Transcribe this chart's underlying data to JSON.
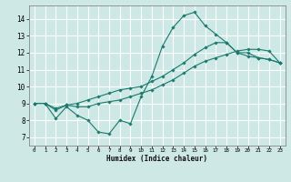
{
  "xlabel": "Humidex (Indice chaleur)",
  "xlim": [
    -0.5,
    23.5
  ],
  "ylim": [
    6.5,
    14.8
  ],
  "xticks": [
    0,
    1,
    2,
    3,
    4,
    5,
    6,
    7,
    8,
    9,
    10,
    11,
    12,
    13,
    14,
    15,
    16,
    17,
    18,
    19,
    20,
    21,
    22,
    23
  ],
  "yticks": [
    7,
    8,
    9,
    10,
    11,
    12,
    13,
    14
  ],
  "bg_color": "#cde8e5",
  "line_color": "#1a7a6e",
  "grid_color": "#b8d8d5",
  "lines": [
    {
      "x": [
        0,
        1,
        2,
        3,
        4,
        5,
        6,
        7,
        8,
        9,
        10,
        11,
        12,
        13,
        14,
        15,
        16,
        17,
        18,
        19,
        20,
        21,
        22,
        23
      ],
      "y": [
        9.0,
        9.0,
        8.1,
        8.8,
        8.3,
        8.0,
        7.3,
        7.2,
        8.0,
        7.8,
        9.4,
        10.6,
        12.4,
        13.5,
        14.2,
        14.4,
        13.6,
        13.1,
        12.6,
        12.0,
        12.0,
        11.7,
        11.6,
        11.4
      ]
    },
    {
      "x": [
        0,
        1,
        2,
        3,
        4,
        5,
        6,
        7,
        8,
        9,
        10,
        11,
        12,
        13,
        14,
        15,
        16,
        17,
        18,
        19,
        20,
        21,
        22,
        23
      ],
      "y": [
        9.0,
        9.0,
        8.7,
        8.9,
        8.8,
        8.8,
        9.0,
        9.1,
        9.2,
        9.4,
        9.6,
        9.8,
        10.1,
        10.4,
        10.8,
        11.2,
        11.5,
        11.7,
        11.9,
        12.1,
        12.2,
        12.2,
        12.1,
        11.4
      ]
    },
    {
      "x": [
        0,
        1,
        2,
        3,
        4,
        5,
        6,
        7,
        8,
        9,
        10,
        11,
        12,
        13,
        14,
        15,
        16,
        17,
        18,
        19,
        20,
        21,
        22,
        23
      ],
      "y": [
        9.0,
        9.0,
        8.6,
        8.9,
        9.0,
        9.2,
        9.4,
        9.6,
        9.8,
        9.9,
        10.0,
        10.3,
        10.6,
        11.0,
        11.4,
        11.9,
        12.3,
        12.6,
        12.6,
        12.0,
        11.8,
        11.7,
        11.6,
        11.4
      ]
    }
  ]
}
